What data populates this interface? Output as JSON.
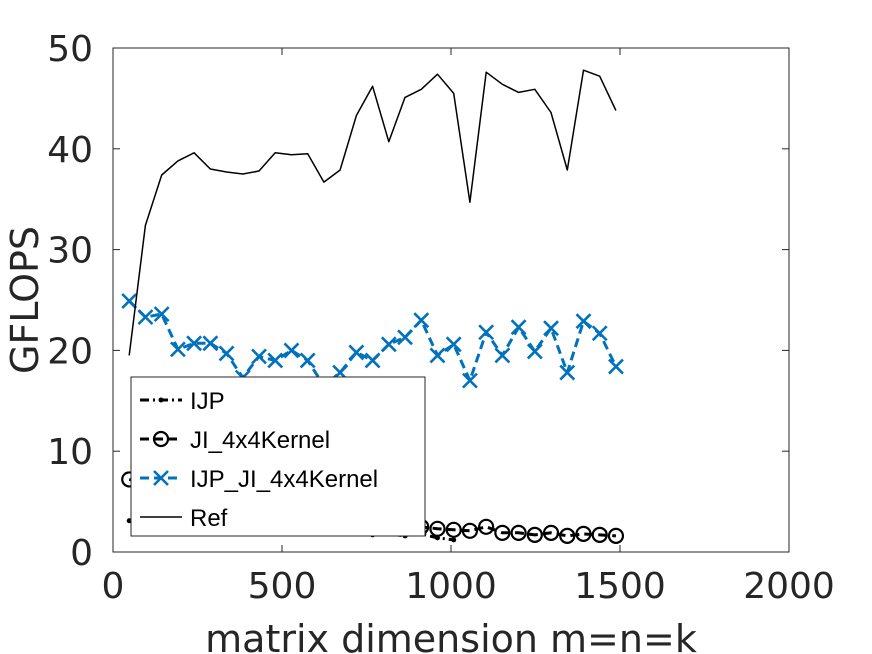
{
  "chart_data": {
    "type": "line",
    "xlabel": "matrix dimension m=n=k",
    "ylabel": "GFLOPS",
    "xlim": [
      0,
      2000
    ],
    "ylim": [
      0,
      50
    ],
    "xticks": [
      "0",
      "500",
      "1000",
      "1500",
      "2000"
    ],
    "yticks": [
      "0",
      "10",
      "20",
      "30",
      "40",
      "50"
    ],
    "grid": false,
    "legend_position": "lower-left",
    "series": [
      {
        "name": "IJP",
        "color": "#000000",
        "style": "dash-dot",
        "marker": "point",
        "x": [
          48,
          96,
          144,
          192,
          240,
          288,
          336,
          384,
          432,
          480,
          528,
          576,
          624,
          672,
          720,
          768,
          816,
          864,
          912,
          960,
          1008
        ],
        "y": [
          3.1,
          2.9,
          3.0,
          2.8,
          2.9,
          2.7,
          2.6,
          2.3,
          2.5,
          2.4,
          2.5,
          2.6,
          2.4,
          2.3,
          2.4,
          1.7,
          1.8,
          1.6,
          1.8,
          1.4,
          1.2
        ]
      },
      {
        "name": "JI_4x4Kernel",
        "color": "#000000",
        "style": "dashed",
        "marker": "circle",
        "x": [
          48,
          96,
          144,
          192,
          240,
          288,
          336,
          384,
          432,
          480,
          528,
          576,
          624,
          672,
          720,
          768,
          816,
          864,
          912,
          960,
          1008,
          1056,
          1104,
          1152,
          1200,
          1248,
          1296,
          1344,
          1392,
          1440,
          1488
        ],
        "y": [
          7.2,
          6.8,
          6.5,
          6.0,
          5.6,
          5.2,
          4.9,
          4.6,
          4.3,
          4.0,
          3.8,
          3.6,
          3.4,
          3.2,
          3.0,
          2.9,
          2.8,
          2.7,
          2.5,
          2.3,
          2.2,
          2.1,
          2.5,
          1.9,
          1.9,
          1.7,
          1.9,
          1.6,
          1.8,
          1.7,
          1.6
        ]
      },
      {
        "name": "IJP_JI_4x4Kernel",
        "color": "#0072bd",
        "style": "dashed",
        "marker": "x",
        "x": [
          48,
          96,
          144,
          192,
          240,
          288,
          336,
          384,
          432,
          480,
          528,
          576,
          624,
          672,
          720,
          768,
          816,
          864,
          912,
          960,
          1008,
          1056,
          1104,
          1152,
          1200,
          1248,
          1296,
          1344,
          1392,
          1440,
          1488
        ],
        "y": [
          24.9,
          23.3,
          23.6,
          20.1,
          20.7,
          20.7,
          19.7,
          17.3,
          19.4,
          19.0,
          20.0,
          19.0,
          16.5,
          17.8,
          19.8,
          19.0,
          20.6,
          21.3,
          23.0,
          19.5,
          20.6,
          17.0,
          21.8,
          19.5,
          22.3,
          19.9,
          22.2,
          17.8,
          22.9,
          21.7,
          18.4
        ]
      },
      {
        "name": "Ref",
        "color": "#000000",
        "style": "solid",
        "marker": "none",
        "x": [
          48,
          96,
          144,
          192,
          240,
          288,
          336,
          384,
          432,
          480,
          528,
          576,
          624,
          672,
          720,
          768,
          816,
          864,
          912,
          960,
          1008,
          1056,
          1104,
          1152,
          1200,
          1248,
          1296,
          1344,
          1392,
          1440,
          1488
        ],
        "y": [
          19.5,
          32.4,
          37.4,
          38.8,
          39.6,
          38.0,
          37.7,
          37.5,
          37.8,
          39.6,
          39.4,
          39.5,
          36.7,
          37.9,
          43.3,
          46.2,
          40.7,
          45.1,
          45.9,
          47.4,
          45.5,
          34.7,
          47.6,
          46.4,
          45.6,
          45.9,
          43.6,
          37.9,
          47.8,
          47.2,
          43.8
        ]
      }
    ]
  }
}
